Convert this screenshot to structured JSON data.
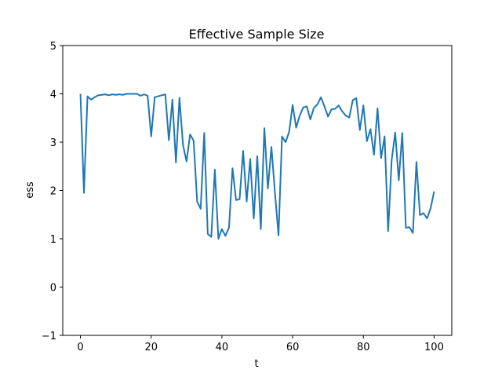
{
  "chart_data": {
    "type": "line",
    "title": "Effective Sample Size",
    "xlabel": "t",
    "ylabel": "ess",
    "xlim": [
      -5,
      105
    ],
    "ylim": [
      -1,
      5
    ],
    "x_ticks": [
      0,
      20,
      40,
      60,
      80,
      100
    ],
    "x_tick_labels": [
      "0",
      "20",
      "40",
      "60",
      "80",
      "100"
    ],
    "y_ticks": [
      -1,
      0,
      1,
      2,
      3,
      4,
      5
    ],
    "y_tick_labels": [
      "−1",
      "0",
      "1",
      "2",
      "3",
      "4",
      "5"
    ],
    "grid": false,
    "colors": {
      "line": "#1f77b4",
      "axes": "#000000",
      "background": "#ffffff"
    },
    "series": [
      {
        "x": [
          0,
          1,
          2,
          3,
          4,
          5,
          6,
          7,
          8,
          9,
          10,
          11,
          12,
          13,
          14,
          15,
          16,
          17,
          18,
          19,
          20,
          21,
          22,
          23,
          24,
          25,
          26,
          27,
          28,
          29,
          30,
          31,
          32,
          33,
          34,
          35,
          36,
          37,
          38,
          39,
          40,
          41,
          42,
          43,
          44,
          45,
          46,
          47,
          48,
          49,
          50,
          51,
          52,
          53,
          54,
          55,
          56,
          57,
          58,
          59,
          60,
          61,
          62,
          63,
          64,
          65,
          66,
          67,
          68,
          69,
          70,
          71,
          72,
          73,
          74,
          75,
          76,
          77,
          78,
          79,
          80,
          81,
          82,
          83,
          84,
          85,
          86,
          87,
          88,
          89,
          90,
          91,
          92,
          93,
          94,
          95,
          96,
          97,
          98,
          99,
          100
        ],
        "values": [
          4.0,
          1.95,
          3.95,
          3.88,
          3.93,
          3.97,
          3.98,
          3.99,
          3.97,
          3.99,
          3.98,
          3.99,
          3.98,
          4.0,
          4.0,
          4.0,
          4.0,
          3.96,
          3.99,
          3.96,
          3.12,
          3.93,
          3.95,
          3.97,
          3.99,
          3.04,
          3.88,
          2.58,
          3.92,
          2.94,
          2.6,
          3.16,
          3.03,
          1.77,
          1.62,
          3.19,
          1.1,
          1.04,
          2.43,
          1.0,
          1.2,
          1.06,
          1.23,
          2.46,
          1.8,
          1.82,
          2.82,
          1.77,
          2.65,
          1.42,
          2.71,
          1.2,
          3.29,
          2.04,
          2.9,
          1.95,
          1.07,
          3.12,
          3.0,
          3.21,
          3.77,
          3.3,
          3.55,
          3.72,
          3.74,
          3.47,
          3.71,
          3.78,
          3.93,
          3.74,
          3.53,
          3.68,
          3.69,
          3.76,
          3.64,
          3.55,
          3.51,
          3.87,
          3.91,
          3.25,
          3.76,
          3.02,
          3.27,
          2.74,
          3.7,
          2.67,
          3.12,
          1.16,
          2.63,
          3.2,
          2.21,
          3.19,
          1.23,
          1.24,
          1.12,
          2.59,
          1.49,
          1.53,
          1.42,
          1.63,
          1.98
        ]
      }
    ]
  }
}
